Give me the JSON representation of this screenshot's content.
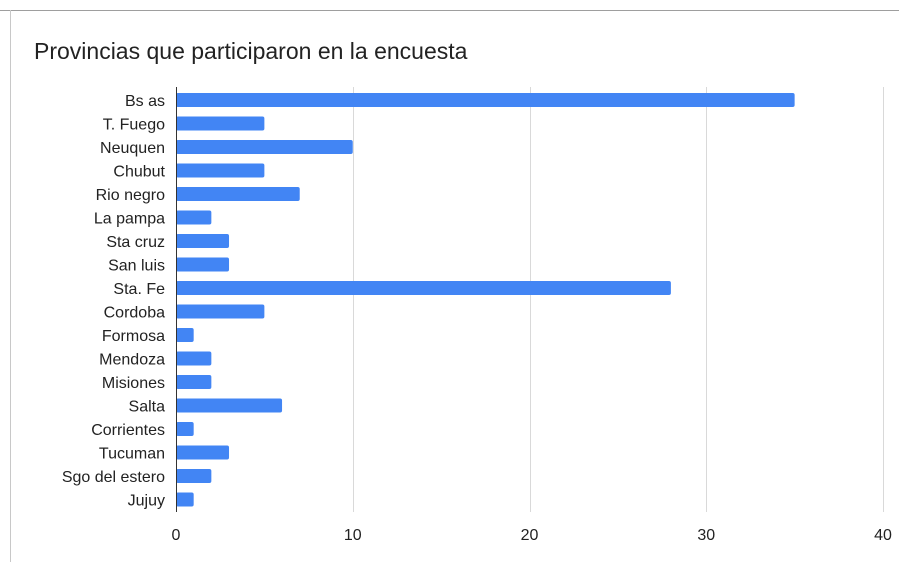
{
  "chart_data": {
    "type": "bar",
    "orientation": "horizontal",
    "title": "Provincias que participaron en la encuesta",
    "xlabel": "",
    "ylabel": "",
    "categories": [
      "Bs as",
      "T. Fuego",
      "Neuquen",
      "Chubut",
      "Rio negro",
      "La pampa",
      "Sta cruz",
      "San luis",
      "Sta. Fe",
      "Cordoba",
      "Formosa",
      "Mendoza",
      "Misiones",
      "Salta",
      "Corrientes",
      "Tucuman",
      "Sgo del estero",
      "Jujuy"
    ],
    "values": [
      35,
      5,
      10,
      5,
      7,
      2,
      3,
      3,
      28,
      5,
      1,
      2,
      2,
      6,
      1,
      3,
      2,
      1
    ],
    "xlim": [
      0,
      40
    ],
    "xticks": [
      "0",
      "10",
      "20",
      "30",
      "40"
    ],
    "grid": true,
    "legend": "none",
    "bar_color": "#4285f4",
    "grid_color": "#d9d9d9",
    "axis_color": "#333333"
  }
}
